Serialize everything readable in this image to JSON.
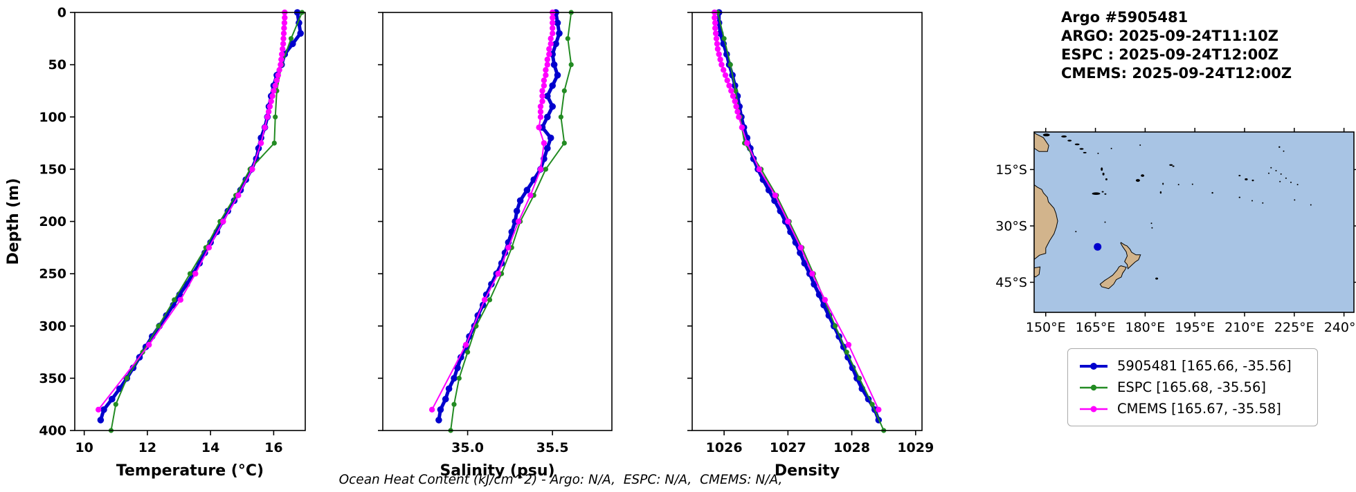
{
  "header": {
    "lines": [
      "Argo #5905481",
      "ARGO: 2025-09-24T11:10Z",
      "ESPC : 2025-09-24T12:00Z",
      "CMEMS: 2025-09-24T12:00Z"
    ]
  },
  "footer": {
    "text": "Ocean Heat Content (kJ/cm^2) - Argo: N/A,  ESPC: N/A,  CMEMS: N/A,"
  },
  "legend": {
    "entries": [
      {
        "label": "5905481 [165.66, -35.56]",
        "color": "#0000cd"
      },
      {
        "label": "ESPC [165.68, -35.56]",
        "color": "#228b22"
      },
      {
        "label": "CMEMS [165.67, -35.58]",
        "color": "#ff00ff"
      }
    ]
  },
  "map": {
    "lon_range": [
      146.5,
      243
    ],
    "lat_range": [
      -5,
      -53
    ],
    "xticks": [
      150,
      165,
      180,
      195,
      210,
      225,
      240
    ],
    "xtick_labels": [
      "150°E",
      "165°E",
      "180°E",
      "195°E",
      "210°E",
      "225°E",
      "240°E"
    ],
    "yticks": [
      -15,
      -30,
      -45
    ],
    "ytick_labels": [
      "15°S",
      "30°S",
      "45°S"
    ],
    "marker": {
      "lon": 165.66,
      "lat": -35.56
    },
    "ocean_color": "#a8c4e4",
    "land_color": "#d2b48c"
  },
  "chart_data": [
    {
      "type": "line",
      "name": "temperature",
      "xlabel": "Temperature (°C)",
      "ylabel": "Depth (m)",
      "xlim": [
        9.7,
        17.0
      ],
      "ylim": [
        0,
        400
      ],
      "y_inverted": true,
      "xticks": [
        10,
        12,
        14,
        16
      ],
      "xtick_labels": [
        "10",
        "12",
        "14",
        "16"
      ],
      "yticks": [
        0,
        50,
        100,
        150,
        200,
        250,
        300,
        350,
        400
      ],
      "ytick_labels": [
        "0",
        "50",
        "100",
        "150",
        "200",
        "250",
        "300",
        "350",
        "400"
      ],
      "series": [
        {
          "name": "5905481",
          "color": "#0000cd",
          "depths": [
            0,
            10,
            20,
            30,
            40,
            50,
            60,
            70,
            80,
            90,
            100,
            110,
            120,
            130,
            140,
            150,
            160,
            170,
            180,
            190,
            200,
            210,
            220,
            230,
            240,
            250,
            260,
            270,
            280,
            290,
            300,
            310,
            320,
            330,
            340,
            350,
            360,
            370,
            380,
            390
          ],
          "values": [
            16.75,
            16.8,
            16.85,
            16.6,
            16.35,
            16.25,
            16.1,
            16.0,
            15.92,
            15.85,
            15.8,
            15.72,
            15.6,
            15.52,
            15.45,
            15.3,
            15.12,
            14.95,
            14.75,
            14.55,
            14.38,
            14.2,
            14.0,
            13.82,
            13.65,
            13.45,
            13.25,
            13.02,
            12.82,
            12.6,
            12.38,
            12.15,
            11.95,
            11.75,
            11.55,
            11.35,
            11.12,
            10.88,
            10.62,
            10.52
          ]
        },
        {
          "name": "ESPC",
          "color": "#228b22",
          "depths": [
            0,
            25,
            50,
            75,
            100,
            125,
            150,
            175,
            200,
            225,
            250,
            275,
            300,
            325,
            350,
            375,
            400
          ],
          "values": [
            16.9,
            16.55,
            16.25,
            16.1,
            16.05,
            16.02,
            15.25,
            14.8,
            14.3,
            13.85,
            13.35,
            12.85,
            12.35,
            11.85,
            11.35,
            11.0,
            10.85
          ]
        },
        {
          "name": "CMEMS",
          "color": "#ff00ff",
          "depths": [
            0,
            5,
            10,
            15,
            20,
            25,
            30,
            35,
            40,
            45,
            50,
            55,
            60,
            65,
            70,
            75,
            80,
            85,
            90,
            95,
            100,
            110,
            125,
            150,
            175,
            200,
            225,
            250,
            275,
            318,
            380
          ],
          "values": [
            16.35,
            16.35,
            16.34,
            16.33,
            16.32,
            16.31,
            16.3,
            16.28,
            16.26,
            16.24,
            16.22,
            16.18,
            16.14,
            16.1,
            16.05,
            16.0,
            15.96,
            15.92,
            15.88,
            15.84,
            15.8,
            15.72,
            15.6,
            15.32,
            14.88,
            14.4,
            13.95,
            13.52,
            13.05,
            12.05,
            10.45
          ]
        }
      ]
    },
    {
      "type": "line",
      "name": "salinity",
      "xlabel": "Salinity (psu)",
      "ylabel": "Depth (m)",
      "xlim": [
        34.5,
        35.85
      ],
      "ylim": [
        0,
        400
      ],
      "y_inverted": true,
      "xticks": [
        35.0,
        35.5
      ],
      "xtick_labels": [
        "35.0",
        "35.5"
      ],
      "yticks": [
        0,
        50,
        100,
        150,
        200,
        250,
        300,
        350,
        400
      ],
      "series": [
        {
          "name": "5905481",
          "color": "#0000cd",
          "depths": [
            0,
            10,
            20,
            30,
            40,
            50,
            60,
            70,
            80,
            90,
            100,
            110,
            120,
            130,
            140,
            150,
            160,
            170,
            180,
            190,
            200,
            210,
            220,
            230,
            240,
            250,
            260,
            270,
            280,
            290,
            300,
            310,
            320,
            330,
            340,
            350,
            360,
            370,
            380,
            390
          ],
          "values": [
            35.52,
            35.53,
            35.54,
            35.52,
            35.5,
            35.51,
            35.53,
            35.5,
            35.47,
            35.5,
            35.47,
            35.44,
            35.49,
            35.47,
            35.45,
            35.43,
            35.39,
            35.35,
            35.31,
            35.29,
            35.28,
            35.26,
            35.24,
            35.22,
            35.2,
            35.17,
            35.14,
            35.11,
            35.09,
            35.06,
            35.04,
            35.01,
            34.99,
            34.96,
            34.94,
            34.92,
            34.89,
            34.87,
            34.84,
            34.83
          ]
        },
        {
          "name": "ESPC",
          "color": "#228b22",
          "depths": [
            0,
            25,
            50,
            75,
            100,
            125,
            150,
            175,
            200,
            225,
            250,
            275,
            300,
            325,
            350,
            375,
            400
          ],
          "values": [
            35.61,
            35.59,
            35.61,
            35.57,
            35.55,
            35.57,
            35.46,
            35.39,
            35.31,
            35.26,
            35.2,
            35.13,
            35.05,
            35.0,
            34.95,
            34.92,
            34.9
          ]
        },
        {
          "name": "CMEMS",
          "color": "#ff00ff",
          "depths": [
            0,
            5,
            10,
            15,
            20,
            25,
            30,
            35,
            40,
            45,
            50,
            55,
            60,
            65,
            70,
            75,
            80,
            85,
            90,
            95,
            100,
            110,
            125,
            150,
            175,
            200,
            225,
            250,
            275,
            318,
            380
          ],
          "values": [
            35.5,
            35.5,
            35.5,
            35.5,
            35.5,
            35.49,
            35.49,
            35.48,
            35.48,
            35.47,
            35.47,
            35.46,
            35.46,
            35.45,
            35.45,
            35.44,
            35.44,
            35.44,
            35.43,
            35.43,
            35.43,
            35.42,
            35.45,
            35.43,
            35.37,
            35.3,
            35.24,
            35.18,
            35.1,
            34.99,
            34.79
          ]
        }
      ]
    },
    {
      "type": "line",
      "name": "density",
      "xlabel": "Density",
      "ylabel": "Depth (m)",
      "xlim": [
        1025.5,
        1029.1
      ],
      "ylim": [
        0,
        400
      ],
      "y_inverted": true,
      "xticks": [
        1026,
        1027,
        1028,
        1029
      ],
      "xtick_labels": [
        "1026",
        "1027",
        "1028",
        "1029"
      ],
      "yticks": [
        0,
        50,
        100,
        150,
        200,
        250,
        300,
        350,
        400
      ],
      "series": [
        {
          "name": "5905481",
          "color": "#0000cd",
          "depths": [
            0,
            10,
            20,
            30,
            40,
            50,
            60,
            70,
            80,
            90,
            100,
            110,
            120,
            130,
            140,
            150,
            160,
            170,
            180,
            190,
            200,
            210,
            220,
            230,
            240,
            250,
            260,
            270,
            280,
            290,
            300,
            310,
            320,
            330,
            340,
            350,
            360,
            370,
            380,
            390
          ],
          "values": [
            1025.92,
            1025.92,
            1025.94,
            1025.99,
            1026.04,
            1026.08,
            1026.13,
            1026.17,
            1026.21,
            1026.24,
            1026.27,
            1026.31,
            1026.36,
            1026.41,
            1026.46,
            1026.53,
            1026.61,
            1026.7,
            1026.79,
            1026.88,
            1026.96,
            1027.04,
            1027.12,
            1027.19,
            1027.26,
            1027.34,
            1027.41,
            1027.49,
            1027.56,
            1027.64,
            1027.72,
            1027.8,
            1027.87,
            1027.94,
            1028.01,
            1028.08,
            1028.16,
            1028.26,
            1028.36,
            1028.42
          ]
        },
        {
          "name": "ESPC",
          "color": "#228b22",
          "depths": [
            0,
            25,
            50,
            75,
            100,
            125,
            150,
            175,
            200,
            225,
            250,
            275,
            300,
            325,
            350,
            375,
            400
          ],
          "values": [
            1025.9,
            1026.0,
            1026.1,
            1026.18,
            1026.25,
            1026.32,
            1026.58,
            1026.82,
            1027.02,
            1027.22,
            1027.4,
            1027.57,
            1027.74,
            1027.92,
            1028.12,
            1028.32,
            1028.5
          ]
        },
        {
          "name": "CMEMS",
          "color": "#ff00ff",
          "depths": [
            0,
            5,
            10,
            15,
            20,
            25,
            30,
            35,
            40,
            45,
            50,
            55,
            60,
            65,
            70,
            75,
            80,
            85,
            90,
            95,
            100,
            110,
            125,
            150,
            175,
            200,
            225,
            250,
            275,
            318,
            380
          ],
          "values": [
            1025.85,
            1025.85,
            1025.86,
            1025.86,
            1025.87,
            1025.88,
            1025.89,
            1025.9,
            1025.92,
            1025.94,
            1025.96,
            1025.99,
            1026.02,
            1026.05,
            1026.08,
            1026.11,
            1026.14,
            1026.17,
            1026.19,
            1026.21,
            1026.23,
            1026.28,
            1026.36,
            1026.55,
            1026.8,
            1027.0,
            1027.2,
            1027.38,
            1027.58,
            1027.95,
            1028.42
          ]
        }
      ]
    }
  ]
}
